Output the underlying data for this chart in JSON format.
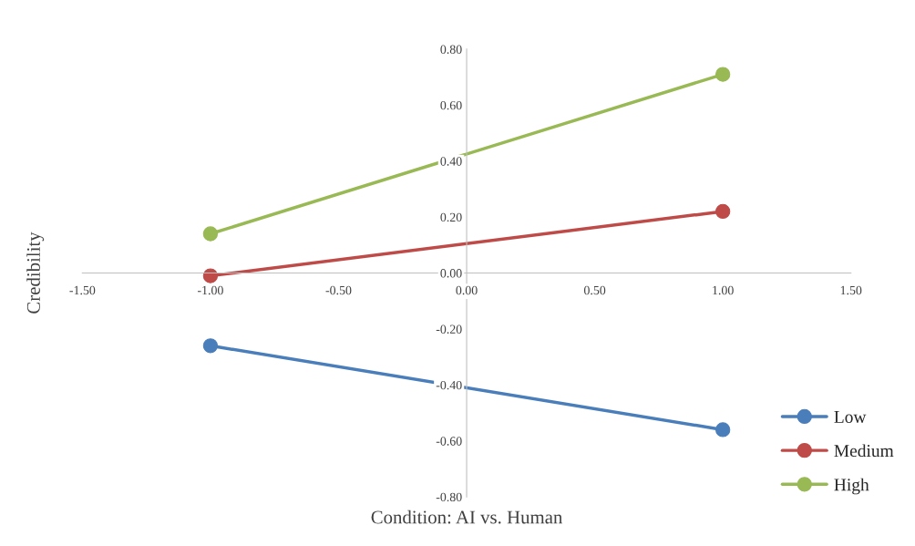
{
  "chart_data": {
    "type": "line",
    "xlabel": "Condition: AI vs. Human",
    "ylabel": "Credibility",
    "x": [
      -1,
      1
    ],
    "series": [
      {
        "name": "Low",
        "color": "#4a7ebb",
        "values": [
          -0.26,
          -0.56
        ]
      },
      {
        "name": "Medium",
        "color": "#be4b48",
        "values": [
          -0.01,
          0.22
        ]
      },
      {
        "name": "High",
        "color": "#98b954",
        "values": [
          0.14,
          0.71
        ]
      }
    ],
    "xlim": [
      -1.5,
      1.5
    ],
    "xticks": [
      {
        "value": -1.5,
        "label": "-1.50"
      },
      {
        "value": -1,
        "label": "-1.00"
      },
      {
        "value": -0.5,
        "label": "-0.50"
      },
      {
        "value": 0,
        "label": "0.00"
      },
      {
        "value": 0.5,
        "label": "0.50"
      },
      {
        "value": 1,
        "label": "1.00"
      },
      {
        "value": 1.5,
        "label": "1.50"
      }
    ],
    "ylim": [
      -0.8,
      0.8
    ],
    "yticks": [
      {
        "value": -0.8,
        "label": "-0.80"
      },
      {
        "value": -0.6,
        "label": "-0.60"
      },
      {
        "value": -0.4,
        "label": "-0.40"
      },
      {
        "value": -0.2,
        "label": "-0.20"
      },
      {
        "value": 0,
        "label": "0.00"
      },
      {
        "value": 0.2,
        "label": "0.20"
      },
      {
        "value": 0.4,
        "label": "0.40"
      },
      {
        "value": 0.6,
        "label": "0.60"
      },
      {
        "value": 0.8,
        "label": "0.80"
      }
    ],
    "marker": "circle",
    "line_style": "solid",
    "grid": false,
    "legend": "bottom right"
  }
}
